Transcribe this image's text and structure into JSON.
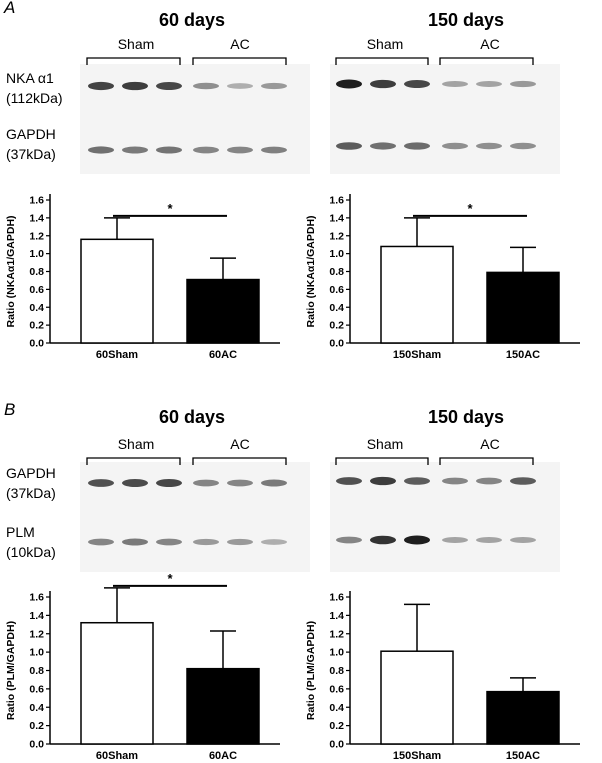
{
  "panels": [
    {
      "letter": "A",
      "titles": [
        "60 days",
        "150 days"
      ],
      "group_labels": [
        "Sham",
        "AC",
        "Sham",
        "AC"
      ],
      "blot_labels": [
        {
          "name": "NKA α1",
          "mw": "(112kDa)"
        },
        {
          "name": "GAPDH",
          "mw": "(37kDa)"
        }
      ]
    },
    {
      "letter": "B",
      "titles": [
        "60 days",
        "150 days"
      ],
      "group_labels": [
        "Sham",
        "AC",
        "Sham",
        "AC"
      ],
      "blot_labels": [
        {
          "name": "GAPDH",
          "mw": "(37kDa)"
        },
        {
          "name": "PLM",
          "mw": "(10kDa)"
        }
      ]
    }
  ],
  "band_intensity": {
    "A_nka_60": [
      0.82,
      0.85,
      0.8,
      0.45,
      0.3,
      0.4
    ],
    "A_gapdh_60": [
      0.6,
      0.55,
      0.58,
      0.5,
      0.5,
      0.52
    ],
    "A_nka_150": [
      1.0,
      0.85,
      0.8,
      0.35,
      0.35,
      0.4
    ],
    "A_gapdh_150": [
      0.7,
      0.6,
      0.62,
      0.45,
      0.45,
      0.45
    ],
    "B_gapdh_60": [
      0.75,
      0.78,
      0.8,
      0.5,
      0.5,
      0.55
    ],
    "B_plm_60": [
      0.5,
      0.55,
      0.5,
      0.4,
      0.4,
      0.3
    ],
    "B_gapdh_150": [
      0.75,
      0.85,
      0.7,
      0.5,
      0.5,
      0.7
    ],
    "B_plm_150": [
      0.5,
      0.9,
      1.0,
      0.35,
      0.35,
      0.35
    ]
  },
  "chart_data": [
    {
      "type": "bar",
      "categories": [
        "60Sham",
        "60AC"
      ],
      "values": [
        1.16,
        0.71
      ],
      "errors": [
        0.24,
        0.24
      ],
      "colors": [
        "#ffffff",
        "#000000"
      ],
      "ylabel": "Ratio (NKAα1/GAPDH)",
      "ylim": [
        0,
        1.6
      ],
      "yticks": [
        "0.0",
        "0.2",
        "0.4",
        "0.6",
        "0.8",
        "1.0",
        "1.2",
        "1.4",
        "1.6"
      ],
      "significance": "*"
    },
    {
      "type": "bar",
      "categories": [
        "150Sham",
        "150AC"
      ],
      "values": [
        1.08,
        0.79
      ],
      "errors": [
        0.32,
        0.28
      ],
      "colors": [
        "#ffffff",
        "#000000"
      ],
      "ylabel": "Ratio (NKAα1/GAPDH)",
      "ylim": [
        0,
        1.6
      ],
      "yticks": [
        "0.0",
        "0.2",
        "0.4",
        "0.6",
        "0.8",
        "1.0",
        "1.2",
        "1.4",
        "1.6"
      ],
      "significance": "*"
    },
    {
      "type": "bar",
      "categories": [
        "60Sham",
        "60AC"
      ],
      "values": [
        1.32,
        0.82
      ],
      "errors": [
        0.38,
        0.41
      ],
      "colors": [
        "#ffffff",
        "#000000"
      ],
      "ylabel": "Ratio (PLM/GAPDH)",
      "ylim": [
        0,
        1.6
      ],
      "yticks": [
        "0.0",
        "0.2",
        "0.4",
        "0.6",
        "0.8",
        "1.0",
        "1.2",
        "1.4",
        "1.6"
      ],
      "significance": "*"
    },
    {
      "type": "bar",
      "categories": [
        "150Sham",
        "150AC"
      ],
      "values": [
        1.01,
        0.57
      ],
      "errors": [
        0.51,
        0.15
      ],
      "colors": [
        "#ffffff",
        "#000000"
      ],
      "ylabel": "Ratio (PLM/GAPDH)",
      "ylim": [
        0,
        1.6
      ],
      "yticks": [
        "0.0",
        "0.2",
        "0.4",
        "0.6",
        "0.8",
        "1.0",
        "1.2",
        "1.4",
        "1.6"
      ],
      "significance": ""
    }
  ]
}
